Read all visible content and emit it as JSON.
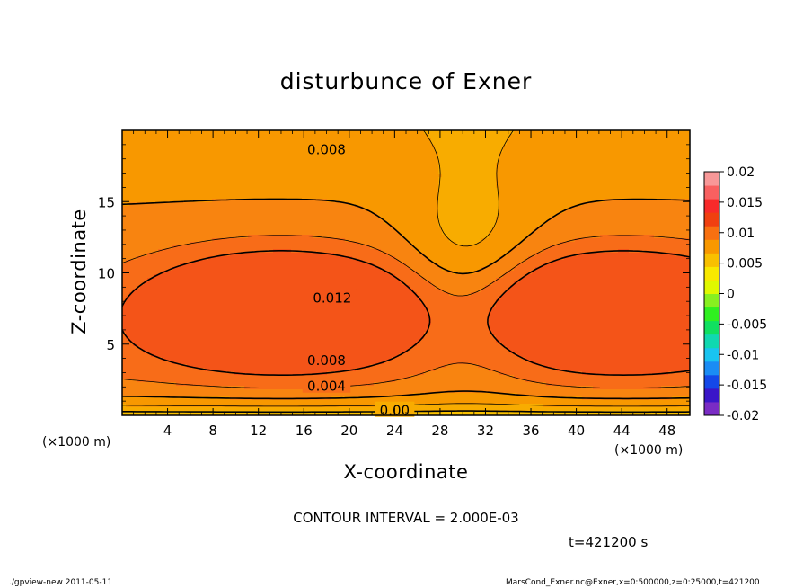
{
  "chart_data": {
    "type": "heatmap",
    "title": "disturbunce of Exner",
    "xlabel": "X-coordinate",
    "ylabel": "Z-coordinate",
    "x_unit_left": "(×1000 m)",
    "x_unit_right": "(×1000 m)",
    "xlim": [
      0,
      50
    ],
    "ylim": [
      0,
      20
    ],
    "xticks": [
      4,
      8,
      12,
      16,
      20,
      24,
      28,
      32,
      36,
      40,
      44,
      48
    ],
    "yticks": [
      5,
      10,
      15
    ],
    "contour_interval_text": "CONTOUR INTERVAL = 2.000E-03",
    "contour_labels": [
      {
        "text": "0.008",
        "x": 18,
        "z": 18.7
      },
      {
        "text": "0.012",
        "x": 18.5,
        "z": 8.3
      },
      {
        "text": "0.008",
        "x": 18,
        "z": 3.9
      },
      {
        "text": "0.004",
        "x": 18,
        "z": 2.1
      },
      {
        "text": "0.00",
        "x": 24,
        "z": 0.4
      }
    ],
    "colorbar": {
      "ticks": [
        "0.02",
        "0.015",
        "0.01",
        "0.005",
        "0",
        "-0.005",
        "-0.01",
        "-0.015",
        "-0.02"
      ],
      "range": [
        -0.02,
        0.02
      ],
      "colors": [
        "#7a2cc4",
        "#3a16c8",
        "#1448e8",
        "#1a8cf4",
        "#19c4f0",
        "#10d8b0",
        "#10e060",
        "#30f020",
        "#88f020",
        "#e0f800",
        "#f8e800",
        "#f8c000",
        "#f89800",
        "#f87010",
        "#f04010",
        "#f82a2a",
        "#f86060",
        "#f89898"
      ]
    },
    "field": {
      "description_units": "Exner disturbance",
      "levels": [
        0.0,
        0.002,
        0.004,
        0.006,
        0.008,
        0.01,
        0.012
      ],
      "max_centers": [
        {
          "x": 14,
          "z": 7.5,
          "value": 0.0125
        },
        {
          "x": 44,
          "z": 7.5,
          "value": 0.0125
        }
      ]
    }
  },
  "annotations": {
    "time": "t=421200 s",
    "footer_left": "./gpview-new   2011-05-11",
    "footer_right": "MarsCond_Exner.nc@Exner,x=0:500000,z=0:25000,t=421200"
  }
}
